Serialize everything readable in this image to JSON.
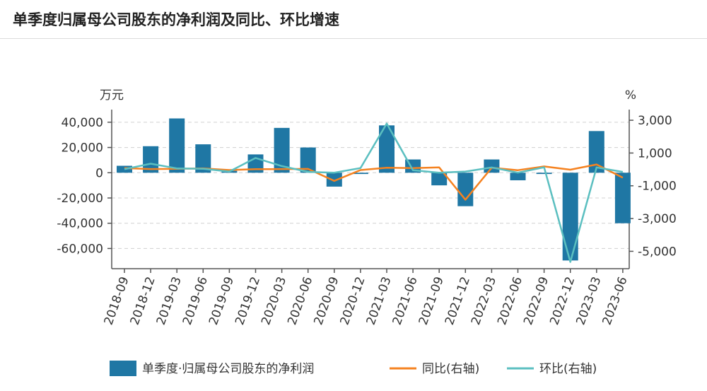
{
  "title": "单季度归属母公司股东的净利润及同比、环比增速",
  "chart_data": {
    "type": "bar",
    "categories": [
      "2018-09",
      "2018-12",
      "2019-03",
      "2019-06",
      "2019-09",
      "2019-12",
      "2020-03",
      "2020-06",
      "2020-09",
      "2020-12",
      "2021-03",
      "2021-06",
      "2021-09",
      "2021-12",
      "2022-03",
      "2022-06",
      "2022-09",
      "2022-12",
      "2023-03",
      "2023-06"
    ],
    "series": [
      {
        "name": "单季度·归属母公司股东的净利润",
        "type": "bar",
        "axis": "left",
        "color": "#1f77a4",
        "values": [
          5500,
          21000,
          43000,
          22500,
          1500,
          14500,
          35500,
          20000,
          -11000,
          -1000,
          37500,
          10500,
          -10000,
          -26500,
          10500,
          -6000,
          -1000,
          -69500,
          33000,
          -40000
        ]
      },
      {
        "name": "同比(右轴)",
        "type": "line",
        "axis": "right",
        "color": "#f58220",
        "values": [
          80,
          20,
          40,
          60,
          -40,
          10,
          20,
          30,
          -700,
          -40,
          100,
          80,
          120,
          -1850,
          100,
          -50,
          180,
          -20,
          300,
          -500
        ]
      },
      {
        "name": "环比(右轴)",
        "type": "line",
        "axis": "right",
        "color": "#5bbfc0",
        "values": [
          10,
          350,
          60,
          40,
          -130,
          700,
          200,
          -150,
          -200,
          80,
          2800,
          -50,
          -200,
          -130,
          120,
          -200,
          130,
          -5650,
          120,
          -150
        ]
      }
    ],
    "y_left": {
      "label": "万元",
      "ticks": [
        40000,
        20000,
        0,
        -20000,
        -40000,
        -60000
      ],
      "tick_labels": [
        "40,000",
        "20,000",
        "0",
        "-20,000",
        "-40,000",
        "-60,000"
      ],
      "range": [
        -76000,
        50000
      ]
    },
    "y_right": {
      "label": "%",
      "ticks": [
        3000,
        1000,
        -1000,
        -3000,
        -5000
      ],
      "tick_labels": [
        "3,000",
        "1,000",
        "-1,000",
        "-3,000",
        "-5,000"
      ],
      "range": [
        -6060,
        3650
      ]
    },
    "grid": "dashed horizontal",
    "legend_position": "bottom"
  },
  "colors": {
    "bar": "#1f77a4",
    "yoy": "#f58220",
    "qoq": "#5bbfc0",
    "axis": "#555555",
    "grid": "#d0d0d0"
  }
}
